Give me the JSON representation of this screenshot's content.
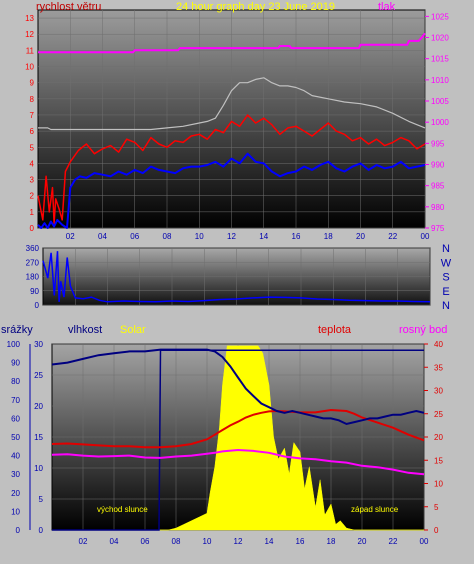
{
  "header": {
    "title": "24 hour graph day   23 June 2019",
    "left_label": "rychlost větru",
    "right_label": "tlak"
  },
  "colors": {
    "bg": "#c0c0c0",
    "wind": "#0000ff",
    "gust": "#ff0000",
    "wind_max": "#c0c0c0",
    "pressure": "#ff00ff",
    "humidity": "#000080",
    "rain": "#000080",
    "temperature": "#e00000",
    "dewpoint": "#ff00ff",
    "solar": "#ffff00",
    "title_color": "#ffff00",
    "axis_blue": "#0000b0"
  },
  "xticks": [
    "02",
    "04",
    "06",
    "08",
    "10",
    "12",
    "14",
    "16",
    "18",
    "20",
    "22",
    "00"
  ],
  "chart_data": [
    {
      "type": "line",
      "name": "wind-pressure",
      "x_range_hours": [
        0,
        24
      ],
      "y_left_ticks": [
        "0",
        "1",
        "2",
        "3",
        "4",
        "5",
        "6",
        "7",
        "8",
        "9",
        "10",
        "11",
        "12",
        "13"
      ],
      "y_right_ticks": [
        "975",
        "980",
        "985",
        "990",
        "995",
        "1000",
        "1005",
        "1010",
        "1015",
        "1020",
        "1025"
      ],
      "ylim_left": [
        0,
        13.5
      ],
      "ylim_right": [
        975,
        1026.5
      ],
      "series": [
        {
          "key": "wind_max",
          "axis": "left",
          "x": [
            0,
            0.6,
            0.8,
            1,
            1.5,
            2,
            3,
            4,
            5,
            6,
            7,
            8,
            9,
            10,
            10.5,
            11,
            11.5,
            12,
            12.5,
            13,
            13.5,
            14,
            14.5,
            15,
            15.5,
            16,
            16.5,
            17,
            18,
            19,
            20,
            21,
            22,
            23,
            23.5,
            24
          ],
          "y": [
            6.2,
            6.2,
            6.1,
            6.1,
            6.1,
            6.1,
            6.1,
            6.1,
            6.1,
            6.1,
            6.1,
            6.2,
            6.3,
            6.5,
            6.6,
            6.8,
            7.6,
            8.5,
            9.0,
            9.0,
            9.2,
            9.3,
            9.0,
            8.8,
            8.8,
            8.7,
            8.5,
            8.2,
            8.0,
            7.8,
            7.7,
            7.5,
            7.1,
            6.6,
            6.4,
            6.2
          ]
        },
        {
          "key": "gust",
          "axis": "left",
          "x": [
            0,
            0.3,
            0.5,
            0.7,
            0.9,
            1.0,
            1.1,
            1.3,
            1.5,
            1.7,
            2,
            2.5,
            3,
            3.5,
            4,
            4.5,
            5,
            5.5,
            6,
            6.5,
            7,
            7.5,
            8,
            8.5,
            9,
            9.5,
            10,
            10.5,
            11,
            11.5,
            12,
            12.5,
            13,
            13.5,
            14,
            14.5,
            15,
            15.5,
            16,
            16.5,
            17,
            17.5,
            18,
            18.5,
            19,
            19.5,
            20,
            20.5,
            21,
            21.5,
            22,
            22.5,
            23,
            23.5,
            24
          ],
          "y": [
            2.0,
            0.5,
            3.2,
            1.0,
            2.5,
            0.3,
            1.8,
            1.2,
            0.5,
            3.5,
            4.1,
            4.8,
            5.2,
            4.6,
            4.9,
            5.1,
            4.7,
            5.5,
            5.3,
            4.8,
            5.6,
            5.2,
            5.0,
            5.4,
            5.3,
            5.7,
            5.8,
            5.5,
            6.1,
            5.9,
            6.6,
            6.3,
            7.0,
            6.5,
            6.8,
            6.4,
            5.8,
            6.2,
            6.3,
            6.0,
            5.7,
            6.1,
            6.5,
            6.0,
            5.8,
            5.4,
            5.6,
            5.2,
            5.5,
            5.1,
            5.3,
            5.6,
            5.4,
            4.9,
            5.2
          ]
        },
        {
          "key": "wind",
          "axis": "left",
          "x": [
            0,
            0.2,
            0.4,
            0.6,
            0.8,
            1.0,
            1.2,
            1.5,
            1.8,
            2,
            2.3,
            2.6,
            3,
            3.5,
            4,
            4.5,
            5,
            5.5,
            6,
            6.5,
            7,
            7.5,
            8,
            8.5,
            9,
            9.5,
            10,
            10.5,
            11,
            11.5,
            12,
            12.5,
            13,
            13.5,
            14,
            14.5,
            15,
            15.5,
            16,
            16.5,
            17,
            17.5,
            18,
            18.5,
            19,
            19.5,
            20,
            20.5,
            21,
            21.5,
            22,
            22.5,
            23,
            23.5,
            24
          ],
          "y": [
            0.2,
            0.0,
            0.3,
            0.0,
            0.4,
            0.1,
            0.5,
            0.2,
            0.0,
            2.5,
            3.0,
            3.2,
            3.1,
            3.4,
            3.3,
            3.2,
            3.5,
            3.3,
            3.6,
            3.4,
            3.8,
            3.6,
            3.5,
            3.4,
            3.7,
            3.8,
            3.8,
            3.9,
            4.1,
            3.8,
            4.3,
            4.0,
            4.6,
            4.1,
            4.0,
            3.5,
            3.2,
            3.4,
            3.5,
            3.8,
            3.6,
            3.9,
            4.1,
            3.7,
            3.5,
            3.8,
            4.0,
            3.6,
            3.9,
            3.7,
            3.8,
            4.1,
            3.7,
            3.8,
            3.9
          ]
        },
        {
          "key": "pressure",
          "axis": "right",
          "x": [
            0,
            5.9,
            6.0,
            8.7,
            8.8,
            14.9,
            15.0,
            15.6,
            15.7,
            19.9,
            20.0,
            22.9,
            23.0,
            23.6,
            23.8,
            24
          ],
          "y": [
            1016.5,
            1016.5,
            1017.0,
            1017.0,
            1017.5,
            1017.5,
            1018.0,
            1018.0,
            1017.5,
            1017.5,
            1018.3,
            1018.3,
            1019.2,
            1019.2,
            1020.0,
            1021.0
          ]
        }
      ]
    },
    {
      "type": "line",
      "name": "wind-direction",
      "y_left_ticks": [
        "0",
        "90",
        "180",
        "270",
        "360"
      ],
      "y_right_labels": [
        "N",
        "W",
        "S",
        "E",
        "N"
      ],
      "ylim": [
        0,
        360
      ],
      "series": [
        {
          "key": "direction",
          "x": [
            0,
            0.3,
            0.5,
            0.7,
            0.9,
            1.0,
            1.1,
            1.3,
            1.5,
            1.7,
            2,
            2.5,
            3,
            3.5,
            4,
            5,
            6,
            7,
            8,
            9,
            10,
            11,
            12,
            13,
            14,
            15,
            16,
            17,
            18,
            19,
            20,
            21,
            22,
            23,
            24
          ],
          "y": [
            280,
            170,
            330,
            60,
            340,
            20,
            150,
            50,
            300,
            120,
            45,
            40,
            50,
            30,
            20,
            25,
            22,
            20,
            25,
            22,
            28,
            35,
            38,
            45,
            50,
            48,
            45,
            38,
            35,
            30,
            28,
            25,
            25,
            22,
            20
          ]
        }
      ]
    },
    {
      "type": "area",
      "name": "weather",
      "labels": {
        "rain": "srážky",
        "humidity": "vlhkost",
        "solar": "Solar",
        "temperature": "teplota",
        "dewpoint": "rosný bod",
        "sunrise": "východ slunce",
        "sunset": "západ slunce"
      },
      "y_rain_ticks": [
        "0",
        "5",
        "10",
        "15",
        "20",
        "25",
        "30"
      ],
      "y_humidity_ticks": [
        "0",
        "10",
        "20",
        "30",
        "40",
        "50",
        "60",
        "70",
        "80",
        "90",
        "100"
      ],
      "y_temp_ticks": [
        "0",
        "5",
        "10",
        "15",
        "20",
        "25",
        "30",
        "35",
        "40"
      ],
      "ylim_rain": [
        0,
        30
      ],
      "ylim_humidity": [
        0,
        100
      ],
      "ylim_temp": [
        0,
        40
      ],
      "series": [
        {
          "key": "humidity",
          "axis": "humidity",
          "x": [
            0,
            1,
            2,
            3,
            4,
            5,
            6,
            7,
            8,
            9,
            10,
            10.5,
            11,
            11.5,
            12,
            12.5,
            13,
            13.5,
            14,
            14.5,
            15,
            15.5,
            16,
            16.5,
            17,
            17.5,
            18,
            18.5,
            19,
            19.5,
            20,
            20.5,
            21,
            21.5,
            22,
            22.5,
            23,
            23.5,
            24
          ],
          "y": [
            89,
            90,
            92,
            94,
            95,
            96,
            96,
            97,
            97,
            97,
            97,
            96,
            93,
            88,
            82,
            76,
            72,
            68,
            66,
            64,
            63,
            64,
            63,
            62,
            61,
            60,
            60,
            59,
            57,
            58,
            59,
            60,
            60,
            61,
            62,
            62,
            63,
            64,
            63
          ]
        },
        {
          "key": "rain",
          "axis": "rain",
          "x": [
            0,
            6.9,
            7.0,
            24
          ],
          "y": [
            0,
            0,
            29,
            29
          ]
        },
        {
          "key": "temperature",
          "axis": "temp",
          "x": [
            0,
            1,
            2,
            3,
            4,
            5,
            6,
            7,
            8,
            9,
            10,
            10.5,
            11,
            11.5,
            12,
            12.5,
            13,
            13.5,
            14,
            14.5,
            15,
            16,
            17,
            18,
            19,
            19.5,
            20,
            21,
            22,
            23,
            24
          ],
          "y": [
            18.5,
            18.6,
            18.4,
            18.2,
            18.0,
            18.0,
            17.8,
            17.8,
            18.0,
            18.5,
            19.5,
            20.5,
            21.5,
            22.5,
            23.3,
            24.2,
            24.8,
            25.2,
            25.5,
            25.6,
            25.5,
            25.3,
            25.3,
            25.8,
            25.6,
            25.0,
            24.2,
            23.1,
            22.0,
            20.5,
            19.3
          ]
        },
        {
          "key": "dewpoint",
          "axis": "temp",
          "x": [
            0,
            1,
            2,
            3,
            4,
            5,
            6,
            7,
            8,
            9,
            10,
            10.5,
            11,
            12,
            13,
            14,
            15,
            16,
            17,
            18,
            19,
            20,
            21,
            22,
            23,
            24
          ],
          "y": [
            16.2,
            16.3,
            16.0,
            15.8,
            15.9,
            16.0,
            15.6,
            15.5,
            15.8,
            16.0,
            16.4,
            16.6,
            16.9,
            17.2,
            17.0,
            16.6,
            15.8,
            15.4,
            15.2,
            14.8,
            14.5,
            13.8,
            13.5,
            13.0,
            12.3,
            12.0
          ]
        },
        {
          "key": "solar",
          "axis": "humidity",
          "x": [
            0,
            7.5,
            8.0,
            8.5,
            9.0,
            9.5,
            10.0,
            10.2,
            10.5,
            10.8,
            11.0,
            11.3,
            11.6,
            12.0,
            12.4,
            12.8,
            13.0,
            13.3,
            13.6,
            14.0,
            14.3,
            14.6,
            15.0,
            15.3,
            15.6,
            16.0,
            16.3,
            16.6,
            17.0,
            17.3,
            17.6,
            18.0,
            18.3,
            18.6,
            19.0,
            19.5,
            20.0,
            24
          ],
          "y": [
            0,
            0,
            1,
            3,
            5,
            7,
            9,
            20,
            34,
            55,
            78,
            99,
            99,
            99,
            99,
            99,
            99,
            99,
            95,
            78,
            50,
            38,
            44,
            30,
            47,
            42,
            22,
            34,
            12,
            27,
            8,
            14,
            3,
            5,
            1,
            0,
            0,
            0
          ]
        }
      ]
    }
  ]
}
